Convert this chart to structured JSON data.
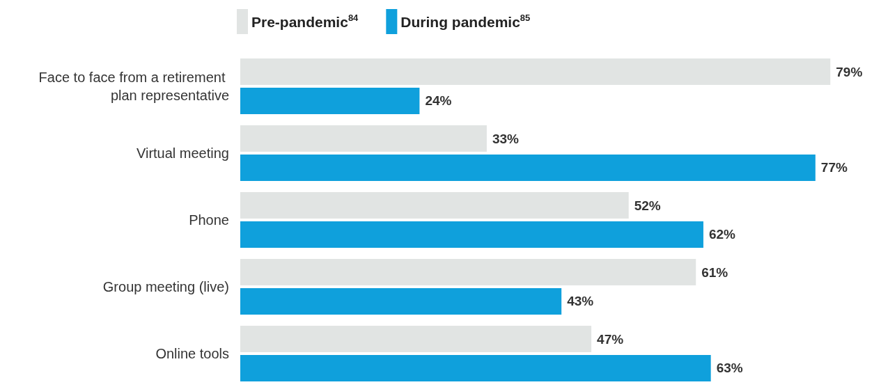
{
  "chart_data": {
    "type": "bar",
    "orientation": "horizontal",
    "categories": [
      "Face to face from a retirement plan representative",
      "Virtual meeting",
      "Phone",
      "Group meeting (live)",
      "Online tools"
    ],
    "series": [
      {
        "name": "Pre-pandemic$^{84}$",
        "color": "#e1e4e3",
        "values": [
          79,
          33,
          52,
          61,
          47
        ],
        "value_labels": [
          "79%",
          "33%",
          "52%",
          "61%",
          "47%"
        ]
      },
      {
        "name": "During pandemic$^{85}$",
        "color": "#0fa0dc",
        "values": [
          24,
          77,
          62,
          43,
          63
        ],
        "value_labels": [
          "24%",
          "77%",
          "62%",
          "43%",
          "63%"
        ]
      }
    ],
    "legend": "top"
  }
}
